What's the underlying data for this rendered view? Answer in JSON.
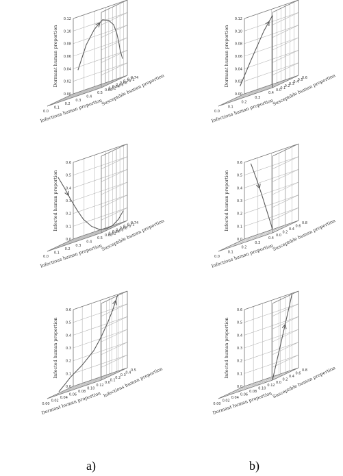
{
  "figure": {
    "captions": [
      "a)",
      "b)"
    ]
  },
  "colors": {
    "background": "#ffffff",
    "frame": "#7a7a7a",
    "grid": "#b8b8b8",
    "curve": "#5a5a5a",
    "text": "#333333"
  },
  "chart_data": [
    {
      "type": "line3d",
      "title": "",
      "xlabel": "Infectious human proportion",
      "ylabel": "Susceptible human proportion",
      "zlabel": "Dormant human proportion",
      "x_ticks": [
        "0.5",
        "0.4",
        "0.3",
        "0.2",
        "0.1",
        "0.0"
      ],
      "y_ticks": [
        "0.60",
        "0.62",
        "0.64",
        "0.66",
        "0.68",
        "0.70",
        "0.72",
        "0.74"
      ],
      "z_ticks": [
        "0.00",
        "0.02",
        "0.04",
        "0.06",
        "0.08",
        "0.10",
        "0.12"
      ],
      "x_range": [
        0.5,
        0.0
      ],
      "y_range": [
        0.6,
        0.74
      ],
      "z_range": [
        0.0,
        0.12
      ],
      "grid": true,
      "series": [
        {
          "x": [
            0.25,
            0.2,
            0.15,
            0.1,
            0.07,
            0.05,
            0.03,
            0.02,
            0.015,
            0.01
          ],
          "y": [
            0.62,
            0.635,
            0.65,
            0.665,
            0.68,
            0.695,
            0.7,
            0.705,
            0.71,
            0.72
          ],
          "z": [
            0.04,
            0.075,
            0.095,
            0.105,
            0.1,
            0.09,
            0.075,
            0.06,
            0.045,
            0.03
          ],
          "arrow_at": 2
        }
      ]
    },
    {
      "type": "line3d",
      "title": "",
      "xlabel": "Infectious human proportion",
      "ylabel": "Susceptible human proportion",
      "zlabel": "Dormant human proportion",
      "x_ticks": [
        "0.4",
        "0.3",
        "0.2",
        "0.1",
        "0.0"
      ],
      "y_ticks": [
        "0.0",
        "0.1",
        "0.2",
        "0.3",
        "0.4",
        "0.5",
        "0.6"
      ],
      "z_ticks": [
        "0.00",
        "0.02",
        "0.04",
        "0.06",
        "0.08",
        "0.10",
        "0.12"
      ],
      "x_range": [
        0.5,
        0.0
      ],
      "y_range": [
        0.0,
        0.6
      ],
      "z_range": [
        0.0,
        0.12
      ],
      "grid": true,
      "series": [
        {
          "x": [
            0.3,
            0.2,
            0.08,
            0.0,
            0.0,
            0.0
          ],
          "y": [
            0.0,
            0.0,
            0.0,
            0.0,
            0.0,
            0.0
          ],
          "z": [
            0.02,
            0.055,
            0.095,
            0.115,
            0.06,
            0.0
          ],
          "arrow_at": 2
        }
      ]
    },
    {
      "type": "line3d",
      "title": "",
      "xlabel": "Infectious human proportion",
      "ylabel": "Susceptible human proportion",
      "zlabel": "Infected human proportion",
      "x_ticks": [
        "0.5",
        "0.4",
        "0.3",
        "0.2",
        "0.1",
        "0.0"
      ],
      "y_ticks": [
        "0.60",
        "0.62",
        "0.64",
        "0.66",
        "0.68",
        "0.70",
        "0.72",
        "0.74"
      ],
      "z_ticks": [
        "0.0",
        "0.1",
        "0.2",
        "0.3",
        "0.4",
        "0.5",
        "0.6"
      ],
      "x_range": [
        0.5,
        0.0
      ],
      "y_range": [
        0.6,
        0.74
      ],
      "z_range": [
        0.0,
        0.6
      ],
      "grid": true,
      "series": [
        {
          "x": [
            0.4,
            0.35,
            0.3,
            0.25,
            0.2,
            0.15,
            0.1,
            0.07,
            0.05,
            0.03,
            0.02
          ],
          "y": [
            0.6,
            0.605,
            0.61,
            0.615,
            0.62,
            0.635,
            0.65,
            0.67,
            0.69,
            0.71,
            0.73
          ],
          "z": [
            0.55,
            0.45,
            0.34,
            0.24,
            0.15,
            0.07,
            0.02,
            0.005,
            0.01,
            0.04,
            0.09
          ],
          "arrow_at": 1
        }
      ]
    },
    {
      "type": "line3d",
      "title": "",
      "xlabel": "Infectious human proportion",
      "ylabel": "Susceptible human proportion",
      "zlabel": "Infected human proportion",
      "x_ticks": [
        "0.4",
        "0.3",
        "0.2",
        "0.1",
        "0.0"
      ],
      "y_ticks": [
        "0.0",
        "0.2",
        "0.4",
        "0.6",
        "0.8"
      ],
      "z_ticks": [
        "0.0",
        "0.1",
        "0.2",
        "0.3",
        "0.4",
        "0.5",
        "0.6"
      ],
      "x_range": [
        0.5,
        0.0
      ],
      "y_range": [
        0.0,
        0.8
      ],
      "z_range": [
        0.0,
        0.6
      ],
      "grid": true,
      "series": [
        {
          "x": [
            0.2,
            0.15,
            0.1,
            0.05,
            0.0
          ],
          "y": [
            0.0,
            0.0,
            0.0,
            0.0,
            0.0
          ],
          "z": [
            0.6,
            0.47,
            0.33,
            0.18,
            0.03
          ],
          "arrow_at": 1
        }
      ]
    },
    {
      "type": "line3d",
      "title": "",
      "xlabel": "Dormant human proportion",
      "ylabel": "Infectious human proportion",
      "zlabel": "Infected human proportion",
      "x_ticks": [
        "0.12",
        "0.10",
        "0.08",
        "0.06",
        "0.04",
        "0.02",
        "0.00"
      ],
      "y_ticks": [
        "0.0",
        "0.1",
        "0.2",
        "0.3",
        "0.4",
        "0.5"
      ],
      "z_ticks": [
        "0.0",
        "0.1",
        "0.2",
        "0.3",
        "0.4",
        "0.5",
        "0.6"
      ],
      "x_range": [
        0.12,
        0.0
      ],
      "y_range": [
        0.0,
        0.5
      ],
      "z_range": [
        0.0,
        0.6
      ],
      "grid": true,
      "series": [
        {
          "x": [
            0.1,
            0.09,
            0.08,
            0.06,
            0.04,
            0.03,
            0.02,
            0.015,
            0.01
          ],
          "y": [
            0.05,
            0.08,
            0.1,
            0.15,
            0.2,
            0.25,
            0.3,
            0.35,
            0.4
          ],
          "z": [
            0.02,
            0.06,
            0.1,
            0.16,
            0.24,
            0.32,
            0.42,
            0.5,
            0.6
          ],
          "arrow_at": 7
        }
      ]
    },
    {
      "type": "line3d",
      "title": "",
      "xlabel": "Dormant human proportion",
      "ylabel": "Susceptible human proportion",
      "zlabel": "Infected human proportion",
      "x_ticks": [
        "0.12",
        "0.10",
        "0.08",
        "0.06",
        "0.04",
        "0.02",
        "0.00"
      ],
      "y_ticks": [
        "0.0",
        "0.2",
        "0.4",
        "0.6",
        "0.8"
      ],
      "z_ticks": [
        "0.0",
        "0.1",
        "0.2",
        "0.3",
        "0.4",
        "0.5",
        "0.6"
      ],
      "x_range": [
        0.12,
        0.0
      ],
      "y_range": [
        0.0,
        0.8
      ],
      "z_range": [
        0.0,
        0.6
      ],
      "grid": true,
      "series": [
        {
          "x": [
            0.0,
            0.0,
            0.0,
            0.0,
            0.0
          ],
          "y": [
            0.0,
            0.15,
            0.3,
            0.45,
            0.6
          ],
          "z": [
            0.0,
            0.15,
            0.3,
            0.45,
            0.6
          ],
          "arrow_at": 2
        }
      ]
    }
  ]
}
